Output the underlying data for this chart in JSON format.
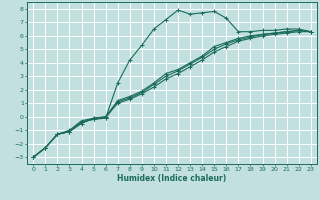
{
  "xlabel": "Humidex (Indice chaleur)",
  "xlim": [
    -0.5,
    23.5
  ],
  "ylim": [
    -3.5,
    8.5
  ],
  "yticks": [
    -3,
    -2,
    -1,
    0,
    1,
    2,
    3,
    4,
    5,
    6,
    7,
    8
  ],
  "xticks": [
    0,
    1,
    2,
    3,
    4,
    5,
    6,
    7,
    8,
    9,
    10,
    11,
    12,
    13,
    14,
    15,
    16,
    17,
    18,
    19,
    20,
    21,
    22,
    23
  ],
  "bg_color": "#c2e0e0",
  "line_color": "#1a6b5a",
  "grid_color": "#ffffff",
  "curves": [
    {
      "x": [
        0,
        1,
        2,
        3,
        4,
        5,
        6,
        7,
        8,
        9,
        10,
        11,
        12,
        13,
        14,
        15,
        16,
        17,
        18,
        19,
        20,
        21,
        22,
        23
      ],
      "y": [
        -3.0,
        -2.3,
        -1.3,
        -1.0,
        -0.3,
        -0.1,
        -0.1,
        2.5,
        4.2,
        5.3,
        6.5,
        7.2,
        7.9,
        7.6,
        7.7,
        7.8,
        7.3,
        6.3,
        6.3,
        6.4,
        6.4,
        6.5,
        6.5,
        6.3
      ]
    },
    {
      "x": [
        0,
        1,
        2,
        3,
        4,
        5,
        6,
        7,
        8,
        9,
        10,
        11,
        12,
        13,
        14,
        15,
        16,
        17,
        18,
        19,
        20,
        21,
        22,
        23
      ],
      "y": [
        -3.0,
        -2.3,
        -1.3,
        -1.1,
        -0.4,
        -0.15,
        0.0,
        1.2,
        1.5,
        1.9,
        2.5,
        3.2,
        3.5,
        4.0,
        4.5,
        5.2,
        5.5,
        5.8,
        6.0,
        6.1,
        6.2,
        6.3,
        6.4,
        6.3
      ]
    },
    {
      "x": [
        0,
        1,
        2,
        3,
        4,
        5,
        6,
        7,
        8,
        9,
        10,
        11,
        12,
        13,
        14,
        15,
        16,
        17,
        18,
        19,
        20,
        21,
        22,
        23
      ],
      "y": [
        -3.0,
        -2.3,
        -1.3,
        -1.1,
        -0.5,
        -0.1,
        0.0,
        1.0,
        1.3,
        1.7,
        2.2,
        2.8,
        3.2,
        3.7,
        4.2,
        4.8,
        5.2,
        5.6,
        5.8,
        6.0,
        6.1,
        6.2,
        6.3,
        6.3
      ]
    },
    {
      "x": [
        0,
        1,
        2,
        3,
        4,
        5,
        6,
        7,
        8,
        9,
        10,
        11,
        12,
        13,
        14,
        15,
        16,
        17,
        18,
        19,
        20,
        21,
        22,
        23
      ],
      "y": [
        -3.0,
        -2.3,
        -1.3,
        -1.1,
        -0.4,
        -0.2,
        -0.1,
        1.1,
        1.4,
        1.8,
        2.4,
        3.0,
        3.4,
        3.9,
        4.4,
        5.0,
        5.4,
        5.7,
        5.9,
        6.1,
        6.2,
        6.3,
        6.4,
        6.3
      ]
    }
  ]
}
